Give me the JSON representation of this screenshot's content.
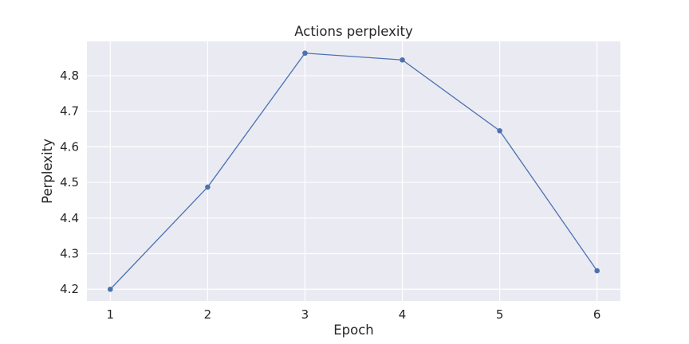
{
  "chart_data": {
    "type": "line",
    "title": "Actions perplexity",
    "xlabel": "Epoch",
    "ylabel": "Perplexity",
    "x": [
      1,
      2,
      3,
      4,
      5,
      6
    ],
    "series": [
      {
        "values": [
          4.2,
          4.487,
          4.863,
          4.844,
          4.645,
          4.252
        ]
      }
    ],
    "xticks": [
      "1",
      "2",
      "3",
      "4",
      "5",
      "6"
    ],
    "yticks": [
      "4.2",
      "4.3",
      "4.4",
      "4.5",
      "4.6",
      "4.7",
      "4.8"
    ],
    "xlim": [
      0.76,
      6.24
    ],
    "ylim": [
      4.167,
      4.896
    ],
    "grid": true,
    "colors": {
      "plot_background": "#eaeaf2",
      "grid": "#ffffff",
      "line": "#4c72b0",
      "text": "#262626"
    }
  }
}
